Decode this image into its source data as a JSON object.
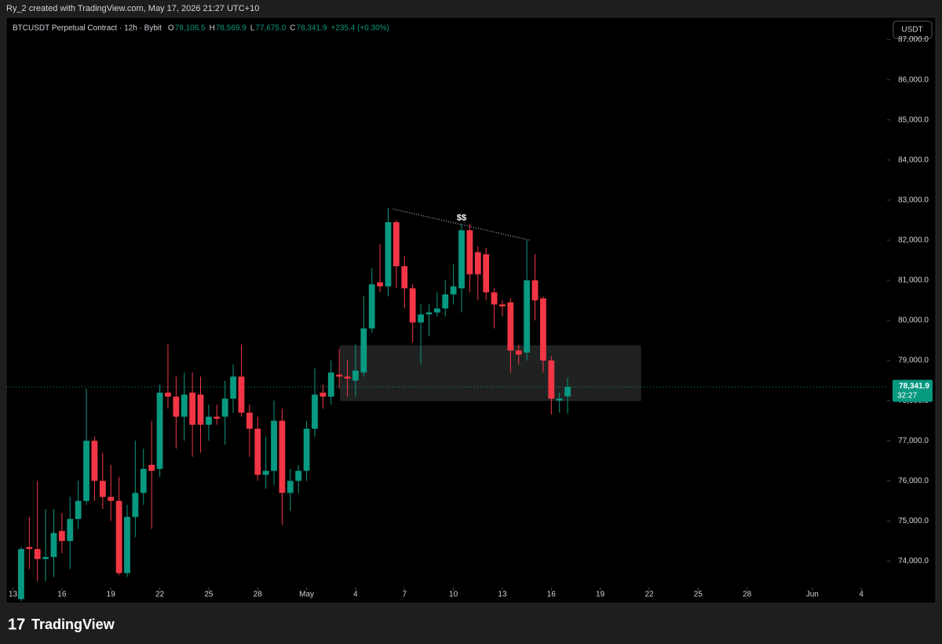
{
  "chart_data": {
    "type": "candlestick",
    "watermark": "Ry_2 created with TradingView.com, May 17, 2026 21:27 UTC+10",
    "title": "BTCUSDT Perpetual Contract · 12h · Bybit",
    "ohlc_legend": [
      {
        "key": "O",
        "text": "78,106.5"
      },
      {
        "key": "H",
        "text": "78,569.9"
      },
      {
        "key": "L",
        "text": "77,675.0"
      },
      {
        "key": "C",
        "text": "78,341.9"
      }
    ],
    "change": "+235.4 (+0.30%)",
    "currency": "USDT",
    "last_price": 78341.9,
    "last_price_label": "78,341.9",
    "countdown": "32:27",
    "brand": "TradingView",
    "up_color": "#089981",
    "down_color": "#f23645",
    "x": [
      13.5,
      14,
      14.5,
      15,
      15.5,
      16,
      16.5,
      17,
      17.5,
      18,
      18.5,
      19,
      19.5,
      20,
      20.5,
      21,
      21.5,
      22,
      22.5,
      23,
      23.5,
      24,
      24.5,
      25,
      25.5,
      26,
      26.5,
      27,
      27.5,
      28,
      28.5,
      29,
      29.5,
      30,
      30.5,
      31,
      31.5,
      32,
      32.5,
      33,
      33.5,
      34,
      34.5,
      35,
      35.5,
      36,
      36.5,
      37,
      37.5,
      38,
      38.5,
      39,
      39.5,
      40,
      40.5,
      41,
      41.5,
      42,
      42.5,
      43,
      43.5,
      44,
      44.5,
      45,
      45.5,
      46,
      46.5,
      47
    ],
    "open": [
      73050,
      74350,
      74300,
      74050,
      74100,
      74750,
      74500,
      75050,
      75500,
      77000,
      76000,
      75600,
      75500,
      73700,
      75100,
      75700,
      76400,
      76300,
      78200,
      78100,
      77600,
      78200,
      78150,
      77400,
      77600,
      77600,
      78050,
      78600,
      77700,
      77300,
      76150,
      76250,
      77500,
      75700,
      76000,
      76250,
      77300,
      78200,
      78100,
      78650,
      78600,
      78500,
      78700,
      79800,
      80950,
      80850,
      82450,
      81350,
      80800,
      79950,
      80150,
      80200,
      80300,
      80650,
      80800,
      82250,
      81700,
      81650,
      80700,
      80400,
      80450,
      79250,
      79200,
      81000,
      80550,
      79000,
      78000,
      78106.5
    ],
    "high": [
      74350,
      75100,
      76000,
      75300,
      75300,
      75200,
      75600,
      76000,
      78300,
      77100,
      76700,
      76400,
      76100,
      75400,
      77000,
      76800,
      77500,
      78400,
      79400,
      78600,
      78700,
      78700,
      78600,
      77900,
      77900,
      78500,
      78900,
      79400,
      77900,
      77600,
      77100,
      78000,
      77800,
      76300,
      76400,
      77500,
      78800,
      78400,
      79000,
      79300,
      79000,
      79400,
      80600,
      81300,
      81900,
      82800,
      82500,
      81600,
      80900,
      80400,
      80400,
      80700,
      81000,
      81400,
      82400,
      82400,
      81850,
      81800,
      80800,
      80500,
      80550,
      79400,
      82000,
      81650,
      80600,
      79100,
      78200,
      78569.9
    ],
    "low": [
      73000,
      73800,
      73500,
      73500,
      73600,
      74200,
      73800,
      74800,
      75400,
      75500,
      75300,
      75000,
      73650,
      73600,
      74600,
      75400,
      74800,
      76100,
      77800,
      76800,
      77000,
      76600,
      76700,
      77000,
      77400,
      76900,
      77700,
      77600,
      76600,
      76000,
      75800,
      75900,
      74900,
      75250,
      75700,
      76000,
      77100,
      77800,
      77900,
      78300,
      78100,
      78100,
      78600,
      79700,
      80700,
      80600,
      80800,
      80300,
      79450,
      78900,
      79600,
      80100,
      80100,
      80400,
      80200,
      80700,
      80500,
      80500,
      79800,
      80100,
      78700,
      78900,
      79000,
      80000,
      78700,
      77650,
      77700,
      77675
    ],
    "close": [
      74300,
      74300,
      74050,
      74100,
      74700,
      74500,
      75050,
      75500,
      77000,
      76000,
      75600,
      75500,
      73700,
      75100,
      75700,
      76300,
      76250,
      78200,
      78100,
      77600,
      78150,
      77400,
      77400,
      77600,
      77550,
      78050,
      78600,
      77700,
      77300,
      76150,
      76250,
      77500,
      75700,
      76000,
      76250,
      77300,
      78150,
      78100,
      78700,
      78600,
      78550,
      78750,
      79800,
      80900,
      80850,
      82450,
      81350,
      80800,
      79950,
      80150,
      80200,
      80300,
      80650,
      80850,
      82250,
      81150,
      81150,
      80700,
      80400,
      80350,
      79250,
      79150,
      81000,
      80500,
      79000,
      78050,
      78050,
      78341.9
    ],
    "xlim": [
      12.59,
      66.58
    ],
    "ylim": [
      72950,
      87560
    ],
    "xticks": [
      13,
      16,
      19,
      22,
      25,
      28,
      {
        "value": 31,
        "label": "May"
      },
      {
        "value": 34,
        "label": "4"
      },
      {
        "value": 37,
        "label": "7"
      },
      {
        "value": 40,
        "label": "10"
      },
      {
        "value": 43,
        "label": "13"
      },
      {
        "value": 46,
        "label": "16"
      },
      {
        "value": 49,
        "label": "19"
      },
      {
        "value": 52,
        "label": "22"
      },
      {
        "value": 55,
        "label": "25"
      },
      {
        "value": 58,
        "label": "28"
      },
      {
        "value": 62,
        "label": "Jun"
      },
      {
        "value": 65,
        "label": "4"
      }
    ],
    "yticks": [
      {
        "value": 74000,
        "label": "74,000.0"
      },
      {
        "value": 75000,
        "label": "75,000.0"
      },
      {
        "value": 76000,
        "label": "76,000.0"
      },
      {
        "value": 77000,
        "label": "77,000.0"
      },
      {
        "value": 78000,
        "label": "78,000.0"
      },
      {
        "value": 79000,
        "label": "79,000.0"
      },
      {
        "value": 80000,
        "label": "80,000.0"
      },
      {
        "value": 81000,
        "label": "81,000.0"
      },
      {
        "value": 82000,
        "label": "82,000.0"
      },
      {
        "value": 83000,
        "label": "83,000.0"
      },
      {
        "value": 84000,
        "label": "84,000.0"
      },
      {
        "value": 85000,
        "label": "85,000.0"
      },
      {
        "value": 86000,
        "label": "86,000.0"
      },
      {
        "value": 87000,
        "label": "87,000.0"
      }
    ],
    "zone": {
      "x": [
        33.04,
        51.5
      ],
      "y": [
        77990,
        79380
      ]
    },
    "trendline": {
      "x": [
        36.3,
        44.7
      ],
      "y": [
        82780,
        82000
      ]
    },
    "annotation": {
      "text": "$$",
      "x": 40.5,
      "y": 82550
    }
  }
}
